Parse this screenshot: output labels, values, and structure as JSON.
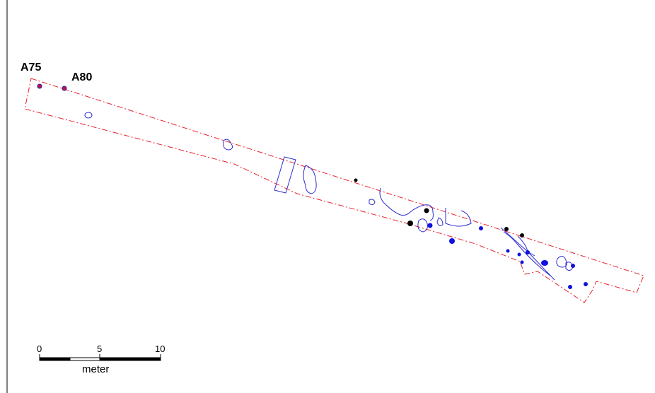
{
  "labels": {
    "a75": "A75",
    "a80": "A80"
  },
  "scalebar": {
    "tick0": "0",
    "tick5": "5",
    "tick10": "10",
    "unit": "meter"
  },
  "colors": {
    "boundary": "#e8202a",
    "feature_outline": "#2d2dd0",
    "feature_blue": "#1010e0",
    "feature_black": "#000000",
    "marker": "#c0104a"
  }
}
